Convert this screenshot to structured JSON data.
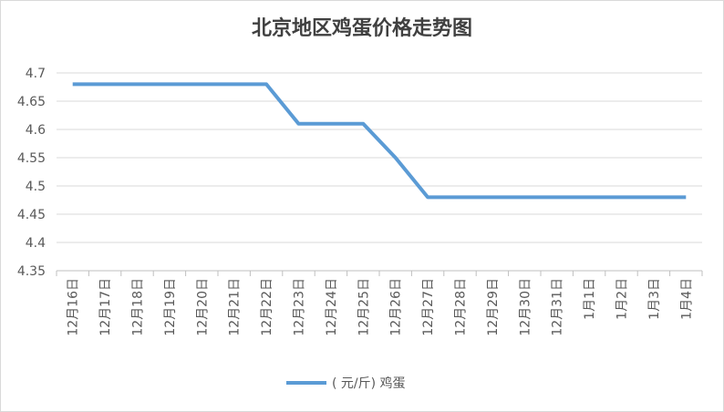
{
  "chart_data": {
    "type": "line",
    "title": "北京地区鸡蛋价格走势图",
    "categories": [
      "12月16日",
      "12月17日",
      "12月18日",
      "12月19日",
      "12月20日",
      "12月21日",
      "12月22日",
      "12月23日",
      "12月24日",
      "12月25日",
      "12月26日",
      "12月27日",
      "12月28日",
      "12月29日",
      "12月30日",
      "12月31日",
      "1月1日",
      "1月2日",
      "1月3日",
      "1月4日"
    ],
    "series": [
      {
        "name": "( 元/斤) 鸡蛋",
        "color": "#5b9bd5",
        "values": [
          4.68,
          4.68,
          4.68,
          4.68,
          4.68,
          4.68,
          4.68,
          4.61,
          4.61,
          4.61,
          4.55,
          4.48,
          4.48,
          4.48,
          4.48,
          4.48,
          4.48,
          4.48,
          4.48,
          4.48
        ]
      }
    ],
    "ylim": [
      4.35,
      4.7
    ],
    "yticks": [
      4.35,
      4.4,
      4.45,
      4.5,
      4.55,
      4.6,
      4.65,
      4.7
    ],
    "grid": true,
    "legend": "bottom"
  }
}
